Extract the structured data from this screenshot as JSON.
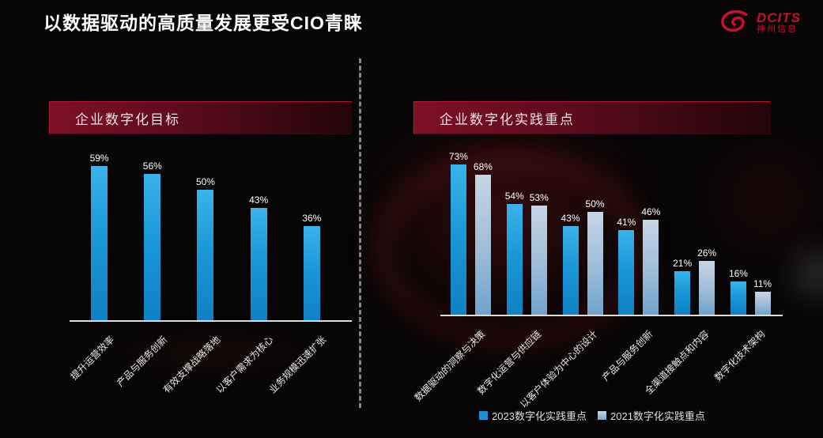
{
  "page": {
    "title": "以数据驱动的高质量发展更受CIO青睐"
  },
  "logo": {
    "brand": "DCITS",
    "subtitle": "神州信息",
    "color": "#c8102e"
  },
  "panels": {
    "left_header": "企业数字化目标",
    "right_header": "企业数字化实践重点"
  },
  "colors": {
    "bar_blue_2023": "#1b98d7",
    "bar_gray_blue_2021": "#9dbcd8",
    "header_red": "#7e1026",
    "background": "#070506",
    "axis": "#dcdcdc"
  },
  "legend": [
    {
      "label": "2023数字化实践重点",
      "color": "#1d8ed2"
    },
    {
      "label": "2021数字化实践重点",
      "color": "#a9bccf"
    }
  ],
  "chart_data": [
    {
      "type": "bar",
      "title": "企业数字化目标",
      "categories": [
        "提升运营效率",
        "产品与服务创新",
        "有效支撑战略落地",
        "以客户需求为核心",
        "业务规模迅速扩张"
      ],
      "values": [
        59,
        56,
        50,
        43,
        36
      ],
      "unit": "%",
      "xlabel": "",
      "ylabel": "",
      "ylim": [
        0,
        65
      ],
      "grid": false,
      "data_labels": true,
      "legend_position": "none"
    },
    {
      "type": "bar",
      "title": "企业数字化实践重点",
      "categories": [
        "数据驱动的洞察与决策",
        "数字化运营与供应链",
        "以客户体验为中心的设计",
        "产品与服务创新",
        "全渠道接触点和内容",
        "数字化技术架构"
      ],
      "series": [
        {
          "name": "2023数字化实践重点",
          "values": [
            73,
            54,
            43,
            41,
            21,
            16
          ]
        },
        {
          "name": "2021数字化实践重点",
          "values": [
            68,
            53,
            50,
            46,
            26,
            11
          ]
        }
      ],
      "unit": "%",
      "xlabel": "",
      "ylabel": "",
      "ylim": [
        0,
        80
      ],
      "grid": false,
      "data_labels": true,
      "legend_position": "bottom"
    }
  ]
}
